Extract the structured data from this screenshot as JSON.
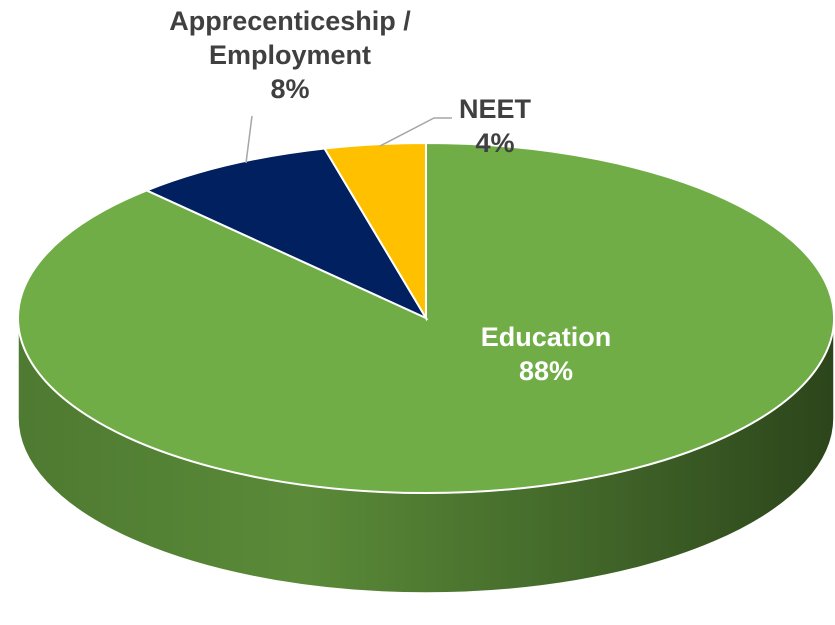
{
  "chart_data": {
    "type": "pie",
    "style": "3d",
    "title": "",
    "slices": [
      {
        "label": "Education",
        "value": 88,
        "value_label": "88%",
        "color": "#70AD47"
      },
      {
        "label": "Apprecenticeship / Employment",
        "label_lines": [
          "Apprecenticeship /",
          "Employment"
        ],
        "value": 8,
        "value_label": "8%",
        "color": "#002060"
      },
      {
        "label": "NEET",
        "value": 4,
        "value_label": "4%",
        "color": "#FFC000"
      }
    ],
    "legend": "none"
  }
}
